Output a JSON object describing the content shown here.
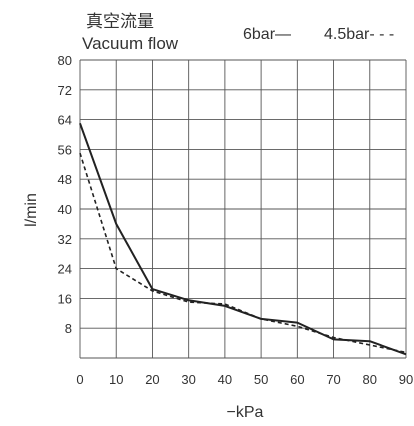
{
  "chart_data": {
    "type": "line",
    "title_cn": "真空流量",
    "title": "Vacuum flow",
    "xlabel": "−kPa",
    "ylabel": "l/min",
    "xlim": [
      0,
      90
    ],
    "ylim": [
      0,
      80
    ],
    "x_ticks": [
      "0",
      "10",
      "20",
      "30",
      "40",
      "50",
      "60",
      "70",
      "80",
      "90"
    ],
    "y_ticks": [
      "8",
      "16",
      "24",
      "32",
      "40",
      "48",
      "56",
      "64",
      "72",
      "80"
    ],
    "grid": true,
    "legend_position": "top-right",
    "series": [
      {
        "name": "6bar",
        "style": "solid",
        "legend_label": "6bar—",
        "x": [
          0,
          10,
          20,
          30,
          40,
          50,
          60,
          70,
          80,
          90
        ],
        "y": [
          63,
          36,
          18.5,
          15.5,
          14,
          10.5,
          9.5,
          5,
          4.5,
          1
        ]
      },
      {
        "name": "4.5bar",
        "style": "dashed",
        "legend_label": "4.5bar- - -",
        "x": [
          0,
          10,
          20,
          30,
          40,
          50,
          60,
          70,
          80,
          90
        ],
        "y": [
          55,
          24,
          18,
          15,
          14.5,
          10.5,
          8.5,
          5.5,
          3.5,
          1.5
        ]
      }
    ],
    "colors": {
      "line": "#222222",
      "grid": "#555555",
      "text": "#333333"
    }
  }
}
